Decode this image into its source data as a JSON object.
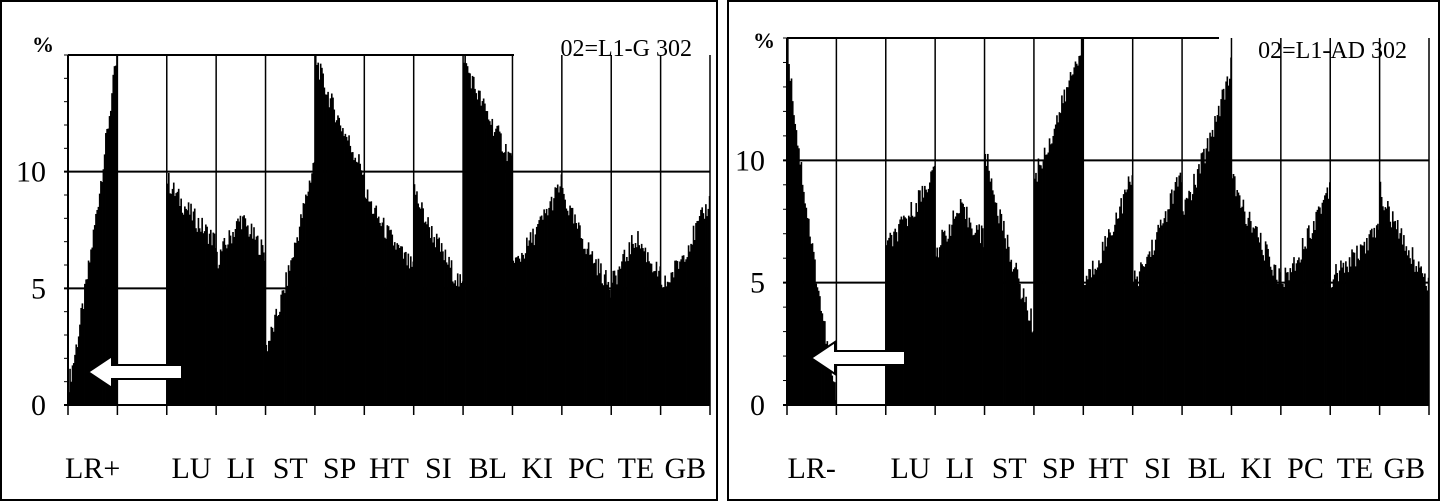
{
  "chart_data": [
    {
      "type": "bar",
      "title": "02=L1-G 302",
      "ylabel": "%",
      "ylim": [
        0,
        15
      ],
      "yticks": [
        0,
        5,
        10
      ],
      "grid": true,
      "first_meridian": "LR+",
      "meridians": [
        "LR+",
        "",
        "LU",
        "LI",
        "ST",
        "SP",
        "HT",
        "SI",
        "BL",
        "KI",
        "PC",
        "TE",
        "GB"
      ],
      "segments": [
        {
          "shape": "rise",
          "start": 1.0,
          "end": 15.0
        },
        {
          "shape": "empty",
          "start": 0,
          "end": 0
        },
        {
          "shape": "fall",
          "start": 9.7,
          "end": 7.0
        },
        {
          "shape": "peak",
          "start": 6.2,
          "peak": 8.0,
          "end": 6.5
        },
        {
          "shape": "rise",
          "start": 2.5,
          "end": 10.5
        },
        {
          "shape": "fall",
          "start": 15.0,
          "end": 10.0
        },
        {
          "shape": "fall",
          "start": 9.2,
          "end": 5.8
        },
        {
          "shape": "fall",
          "start": 9.3,
          "end": 5.0
        },
        {
          "shape": "fall",
          "start": 15.0,
          "end": 10.5
        },
        {
          "shape": "rise",
          "start": 6.0,
          "end": 9.5
        },
        {
          "shape": "fall",
          "start": 9.2,
          "end": 5.0
        },
        {
          "shape": "peak",
          "start": 5.2,
          "peak": 7.2,
          "end": 5.5
        },
        {
          "shape": "rise",
          "start": 5.0,
          "end": 8.7
        }
      ],
      "arrow_direction": "left"
    },
    {
      "type": "bar",
      "title": "02=L1-AD 302",
      "ylabel": "%",
      "ylim": [
        0,
        15
      ],
      "yticks": [
        0,
        5,
        10
      ],
      "grid": true,
      "first_meridian": "LR-",
      "meridians": [
        "LR-",
        "",
        "LU",
        "LI",
        "ST",
        "SP",
        "HT",
        "SI",
        "BL",
        "KI",
        "PC",
        "TE",
        "GB"
      ],
      "segments": [
        {
          "shape": "fall",
          "start": 15.0,
          "end": 0.3
        },
        {
          "shape": "empty",
          "start": 0,
          "end": 0
        },
        {
          "shape": "rise",
          "start": 6.5,
          "end": 9.6
        },
        {
          "shape": "peak",
          "start": 6.3,
          "peak": 8.0,
          "end": 6.8
        },
        {
          "shape": "fall",
          "start": 10.5,
          "end": 3.2
        },
        {
          "shape": "rise",
          "start": 9.4,
          "end": 15.0
        },
        {
          "shape": "rise",
          "start": 5.0,
          "end": 9.3
        },
        {
          "shape": "rise",
          "start": 5.0,
          "end": 9.5
        },
        {
          "shape": "rise",
          "start": 8.0,
          "end": 13.8
        },
        {
          "shape": "fall",
          "start": 9.3,
          "end": 5.2
        },
        {
          "shape": "rise",
          "start": 5.0,
          "end": 9.0
        },
        {
          "shape": "rise",
          "start": 5.2,
          "end": 7.2
        },
        {
          "shape": "fall",
          "start": 8.8,
          "end": 5.0
        }
      ],
      "arrow_direction": "left"
    }
  ]
}
